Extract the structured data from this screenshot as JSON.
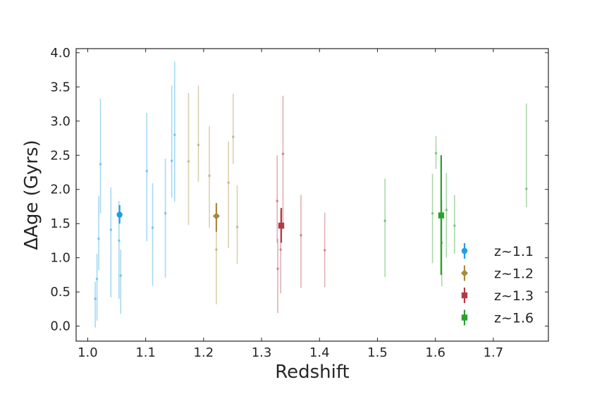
{
  "chart_data": {
    "type": "scatter",
    "xlabel": "Redshift",
    "ylabel": "ΔAge (Gyrs)",
    "xlim": [
      0.98,
      1.795
    ],
    "ylim": [
      -0.22,
      4.06
    ],
    "xticks": [
      1.0,
      1.1,
      1.2,
      1.3,
      1.4,
      1.5,
      1.6,
      1.7
    ],
    "xtick_labels": [
      "1.0",
      "1.1",
      "1.2",
      "1.3",
      "1.4",
      "1.5",
      "1.6",
      "1.7"
    ],
    "yticks": [
      0.0,
      0.5,
      1.0,
      1.5,
      2.0,
      2.5,
      3.0,
      3.5,
      4.0
    ],
    "ytick_labels": [
      "0.0",
      "0.5",
      "1.0",
      "1.5",
      "2.0",
      "2.5",
      "3.0",
      "3.5",
      "4.0"
    ],
    "grid": false,
    "legend_position": "bottom-right",
    "series": [
      {
        "name": "z~1.1",
        "color": "#1f9fdf",
        "marker": "circle",
        "mean": {
          "x": 1.055,
          "y": 1.63,
          "ylo": 1.5,
          "yhi": 1.77
        },
        "points": [
          {
            "x": 1.013,
            "y": 0.4,
            "ylo": -0.02,
            "yhi": 0.65
          },
          {
            "x": 1.016,
            "y": 0.69,
            "ylo": 0.08,
            "yhi": 1.06
          },
          {
            "x": 1.019,
            "y": 1.28,
            "ylo": 0.82,
            "yhi": 1.9
          },
          {
            "x": 1.022,
            "y": 2.37,
            "ylo": 1.65,
            "yhi": 3.33
          },
          {
            "x": 1.04,
            "y": 1.41,
            "ylo": 0.42,
            "yhi": 2.03
          },
          {
            "x": 1.054,
            "y": 1.25,
            "ylo": 0.4,
            "yhi": 1.83
          },
          {
            "x": 1.057,
            "y": 0.74,
            "ylo": 0.18,
            "yhi": 1.12
          },
          {
            "x": 1.102,
            "y": 2.27,
            "ylo": 1.24,
            "yhi": 3.12
          },
          {
            "x": 1.112,
            "y": 1.44,
            "ylo": 0.59,
            "yhi": 2.09
          },
          {
            "x": 1.134,
            "y": 1.65,
            "ylo": 0.71,
            "yhi": 2.45
          },
          {
            "x": 1.145,
            "y": 2.42,
            "ylo": 1.88,
            "yhi": 3.52
          },
          {
            "x": 1.15,
            "y": 2.8,
            "ylo": 1.82,
            "yhi": 3.87
          }
        ]
      },
      {
        "name": "z~1.2",
        "color": "#a88a3c",
        "marker": "diamond",
        "mean": {
          "x": 1.222,
          "y": 1.61,
          "ylo": 1.38,
          "yhi": 1.8
        },
        "points": [
          {
            "x": 1.174,
            "y": 2.41,
            "ylo": 1.48,
            "yhi": 3.41
          },
          {
            "x": 1.191,
            "y": 2.65,
            "ylo": 2.11,
            "yhi": 3.52
          },
          {
            "x": 1.21,
            "y": 2.2,
            "ylo": 1.44,
            "yhi": 2.93
          },
          {
            "x": 1.222,
            "y": 1.12,
            "ylo": 0.32,
            "yhi": 1.4
          },
          {
            "x": 1.243,
            "y": 2.1,
            "ylo": 1.14,
            "yhi": 2.7
          },
          {
            "x": 1.251,
            "y": 2.77,
            "ylo": 2.37,
            "yhi": 3.4
          },
          {
            "x": 1.258,
            "y": 1.45,
            "ylo": 0.91,
            "yhi": 2.06
          }
        ]
      },
      {
        "name": "z~1.3",
        "color": "#b23a48",
        "marker": "square",
        "mean": {
          "x": 1.334,
          "y": 1.47,
          "ylo": 1.22,
          "yhi": 1.73
        },
        "points": [
          {
            "x": 1.327,
            "y": 1.83,
            "ylo": 1.22,
            "yhi": 2.5
          },
          {
            "x": 1.328,
            "y": 0.84,
            "ylo": 0.19,
            "yhi": 1.28
          },
          {
            "x": 1.333,
            "y": 1.12,
            "ylo": 0.48,
            "yhi": 1.7
          },
          {
            "x": 1.337,
            "y": 2.52,
            "ylo": 1.42,
            "yhi": 3.37
          },
          {
            "x": 1.368,
            "y": 1.33,
            "ylo": 0.56,
            "yhi": 1.92
          },
          {
            "x": 1.409,
            "y": 1.11,
            "ylo": 0.57,
            "yhi": 1.66
          }
        ]
      },
      {
        "name": "z~1.6",
        "color": "#2ca02c",
        "marker": "square",
        "mean": {
          "x": 1.61,
          "y": 1.62,
          "ylo": 0.75,
          "yhi": 2.5
        },
        "points": [
          {
            "x": 1.513,
            "y": 1.54,
            "ylo": 0.72,
            "yhi": 2.16
          },
          {
            "x": 1.595,
            "y": 1.65,
            "ylo": 0.92,
            "yhi": 2.23
          },
          {
            "x": 1.601,
            "y": 2.53,
            "ylo": 2.3,
            "yhi": 2.78
          },
          {
            "x": 1.611,
            "y": 1.22,
            "ylo": 0.58,
            "yhi": 1.84
          },
          {
            "x": 1.619,
            "y": 1.7,
            "ylo": 1.0,
            "yhi": 2.24
          },
          {
            "x": 1.633,
            "y": 1.47,
            "ylo": 1.06,
            "yhi": 1.92
          },
          {
            "x": 1.757,
            "y": 2.01,
            "ylo": 1.74,
            "yhi": 3.26
          }
        ]
      }
    ]
  }
}
